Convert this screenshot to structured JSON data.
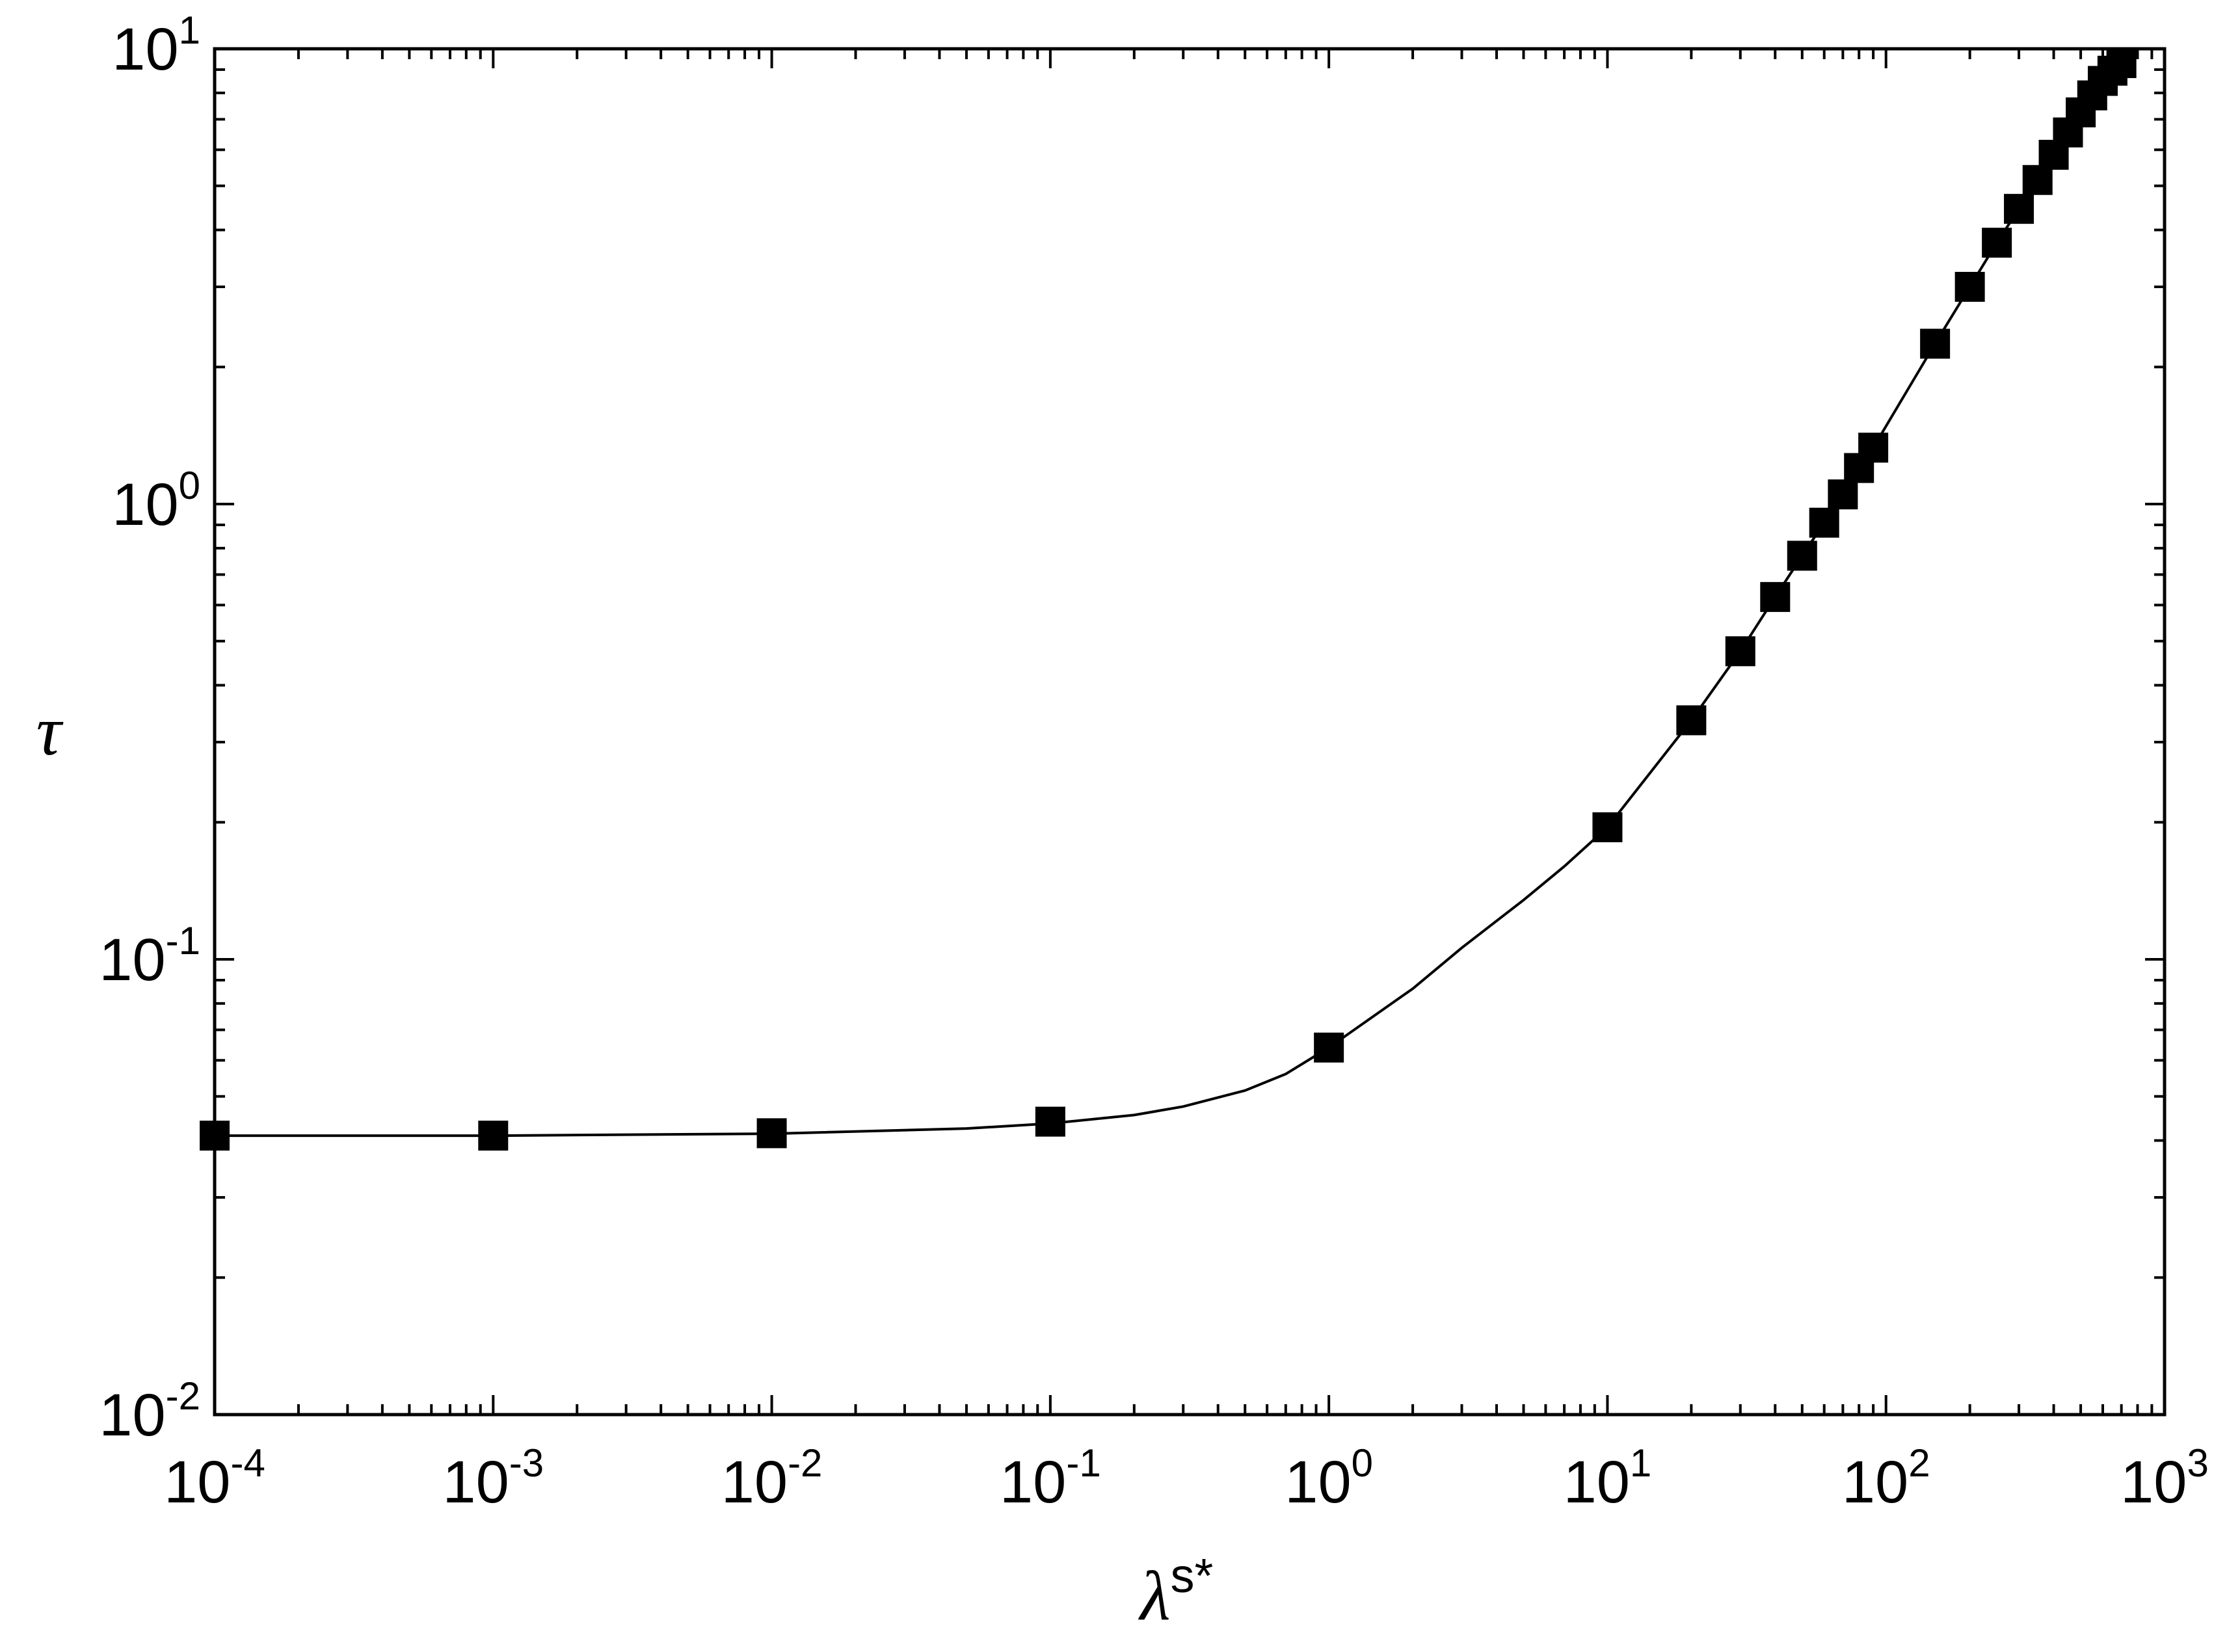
{
  "chart_data": {
    "type": "scatter",
    "xlabel": {
      "base": "λ",
      "sup": "s*"
    },
    "ylabel": "τ",
    "xscale": "log",
    "yscale": "log",
    "xlim": [
      0.0001,
      1000
    ],
    "ylim": [
      0.01,
      10
    ],
    "grid": false,
    "legend": "none",
    "x_ticks": [
      {
        "base": "10",
        "exp": "-4",
        "value": 0.0001
      },
      {
        "base": "10",
        "exp": "-3",
        "value": 0.001
      },
      {
        "base": "10",
        "exp": "-2",
        "value": 0.01
      },
      {
        "base": "10",
        "exp": "-1",
        "value": 0.1
      },
      {
        "base": "10",
        "exp": "0",
        "value": 1
      },
      {
        "base": "10",
        "exp": "1",
        "value": 10
      },
      {
        "base": "10",
        "exp": "2",
        "value": 100
      },
      {
        "base": "10",
        "exp": "3",
        "value": 1000
      }
    ],
    "y_ticks": [
      {
        "base": "10",
        "exp": "-2",
        "value": 0.01
      },
      {
        "base": "10",
        "exp": "-1",
        "value": 0.1
      },
      {
        "base": "10",
        "exp": "0",
        "value": 1
      },
      {
        "base": "10",
        "exp": "1",
        "value": 10
      }
    ],
    "series": [
      {
        "marker": "square",
        "color": "#000000",
        "x": [
          0.0001,
          0.001,
          0.01,
          0.1,
          1,
          10,
          20,
          30,
          40,
          50,
          60,
          70,
          80,
          90,
          150,
          200,
          250,
          300,
          350,
          400,
          450,
          500,
          550,
          600,
          650,
          700
        ],
        "y": [
          0.041,
          0.041,
          0.0415,
          0.044,
          0.064,
          0.195,
          0.335,
          0.475,
          0.625,
          0.77,
          0.91,
          1.05,
          1.2,
          1.33,
          2.25,
          3.0,
          3.75,
          4.45,
          5.15,
          5.85,
          6.55,
          7.25,
          7.9,
          8.5,
          8.95,
          9.3
        ]
      }
    ],
    "fit_line": {
      "color": "#000000",
      "x": [
        0.0001,
        0.001,
        0.01,
        0.05,
        0.1,
        0.2,
        0.3,
        0.5,
        0.7,
        1,
        2,
        3,
        5,
        7,
        10,
        20,
        30,
        40,
        50,
        60,
        70,
        80,
        90,
        150,
        200,
        250,
        300,
        350,
        400,
        450,
        500,
        550,
        600,
        650,
        700
      ],
      "y": [
        0.041,
        0.041,
        0.0414,
        0.0425,
        0.0436,
        0.0455,
        0.0475,
        0.0515,
        0.056,
        0.064,
        0.0862,
        0.106,
        0.135,
        0.16,
        0.195,
        0.335,
        0.475,
        0.625,
        0.77,
        0.91,
        1.05,
        1.2,
        1.33,
        2.25,
        3.0,
        3.75,
        4.45,
        5.15,
        5.85,
        6.55,
        7.25,
        7.9,
        8.5,
        8.95,
        9.3
      ]
    }
  }
}
